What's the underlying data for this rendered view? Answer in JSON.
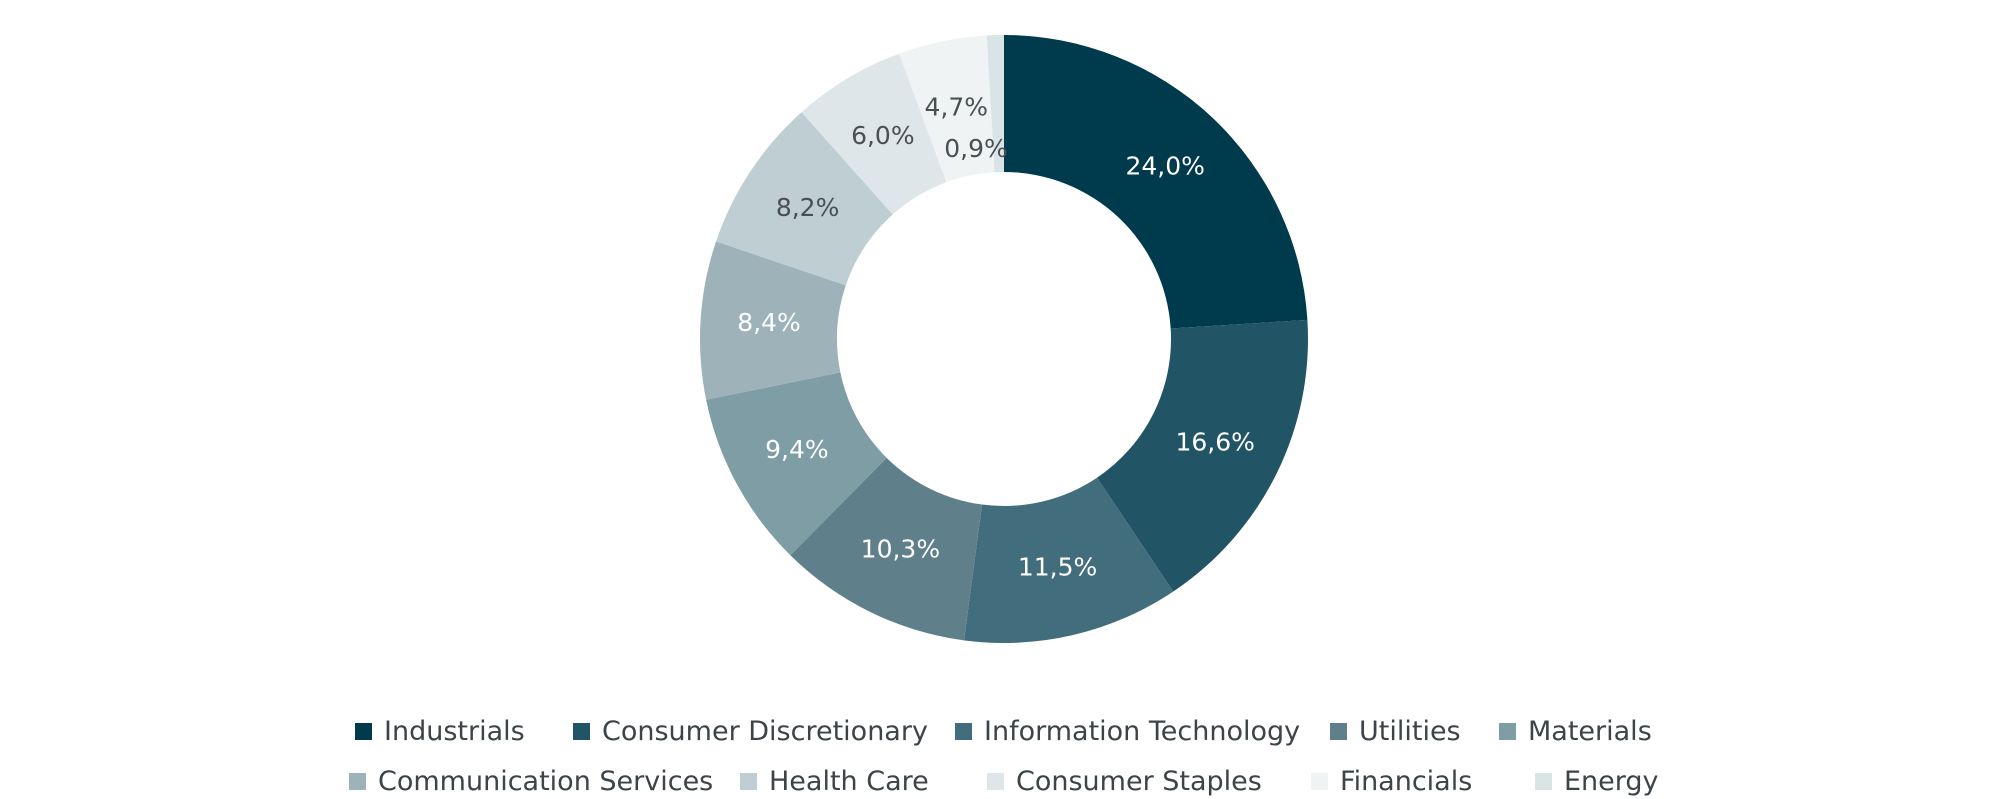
{
  "chart_data": {
    "type": "pie",
    "variant": "donut",
    "categories": [
      "Industrials",
      "Consumer Discretionary",
      "Information Technology",
      "Utilities",
      "Materials",
      "Communication Services",
      "Health Care",
      "Consumer Staples",
      "Financials",
      "Energy"
    ],
    "values": [
      24.0,
      16.6,
      11.5,
      10.3,
      9.4,
      8.4,
      8.2,
      6.0,
      4.7,
      0.9
    ],
    "labels": [
      "24,0%",
      "16,6%",
      "11,5%",
      "10,3%",
      "9,4%",
      "8,4%",
      "8,2%",
      "6,0%",
      "4,7%",
      "0,9%"
    ],
    "colors": [
      "#003a4d",
      "#215465",
      "#426d7c",
      "#5f808b",
      "#7f9da5",
      "#9db3b9",
      "#bfced2",
      "#dfe6e9",
      "#eff3f4",
      "#dae3e6"
    ],
    "label_colors": [
      "#ffffff",
      "#ffffff",
      "#ffffff",
      "#ffffff",
      "#ffffff",
      "#ffffff",
      "#4a4f52",
      "#4a4f52",
      "#4a4f52",
      "#4a4f52"
    ],
    "legend_position": "bottom",
    "title": "",
    "xlabel": "",
    "ylabel": ""
  }
}
